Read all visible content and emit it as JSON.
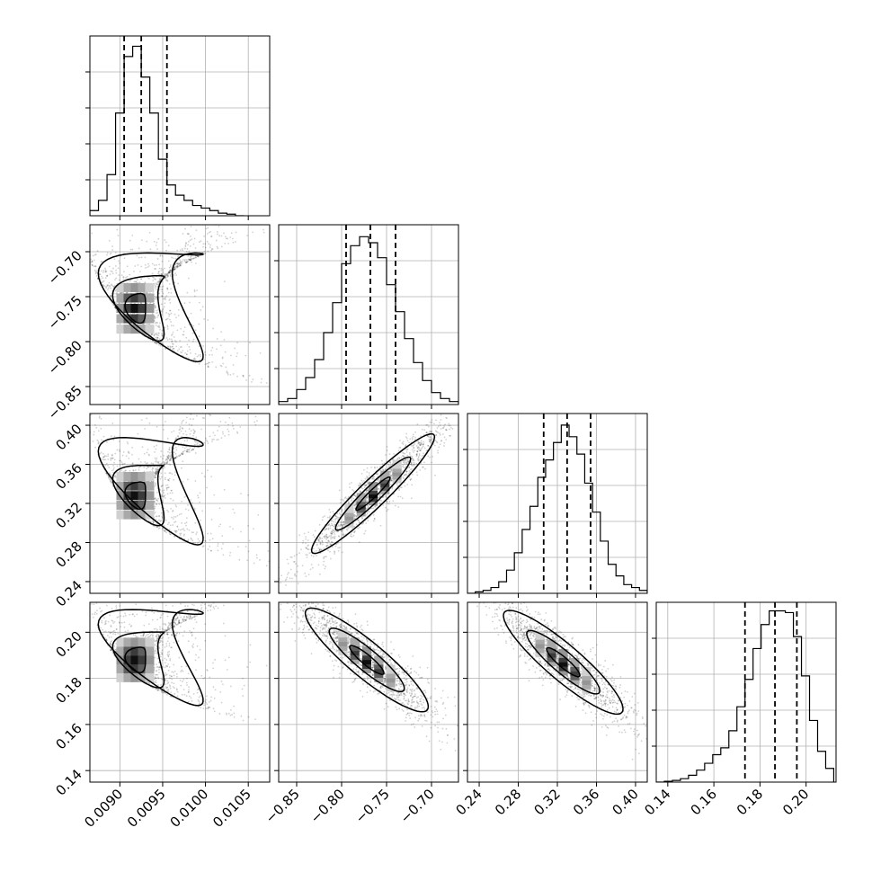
{
  "chart_data": {
    "type": "corner",
    "parameters": [
      {
        "id": "p0",
        "range": [
          0.00865,
          0.01075
        ],
        "ticks": [
          0.009,
          0.0095,
          0.01,
          0.0105
        ],
        "tick_labels": [
          "0.0090",
          "0.0095",
          "0.0100",
          "0.0105"
        ]
      },
      {
        "id": "p1",
        "range": [
          -0.87,
          -0.67
        ],
        "ticks": [
          -0.85,
          -0.8,
          -0.75,
          -0.7
        ],
        "tick_labels": [
          "−0.85",
          "−0.80",
          "−0.75",
          "−0.70"
        ]
      },
      {
        "id": "p2",
        "range": [
          0.228,
          0.412
        ],
        "ticks": [
          0.24,
          0.28,
          0.32,
          0.36,
          0.4
        ],
        "tick_labels": [
          "0.24",
          "0.28",
          "0.32",
          "0.36",
          "0.40"
        ]
      },
      {
        "id": "p3",
        "range": [
          0.135,
          0.213
        ],
        "ticks": [
          0.14,
          0.16,
          0.18,
          0.2
        ],
        "tick_labels": [
          "0.14",
          "0.16",
          "0.18",
          "0.20"
        ]
      }
    ],
    "marginals": [
      {
        "param": 0,
        "bin_edges": [
          0.00865,
          0.00875,
          0.00885,
          0.00895,
          0.00905,
          0.00915,
          0.00925,
          0.00935,
          0.00945,
          0.00955,
          0.00965,
          0.00975,
          0.00985,
          0.00995,
          0.01005,
          0.01015,
          0.01025,
          0.01035,
          0.01045
        ],
        "counts": [
          1,
          3,
          8,
          20,
          31,
          33,
          27,
          20,
          11,
          6,
          4,
          3,
          2,
          1.5,
          1,
          0.5,
          0.3,
          0
        ],
        "ylim": [
          0,
          35
        ],
        "quantiles": [
          0.00905,
          0.00925,
          0.00955
        ]
      },
      {
        "param": 1,
        "bin_edges": [
          -0.87,
          -0.86,
          -0.85,
          -0.84,
          -0.83,
          -0.82,
          -0.81,
          -0.8,
          -0.79,
          -0.78,
          -0.77,
          -0.76,
          -0.75,
          -0.74,
          -0.73,
          -0.72,
          -0.71,
          -0.7,
          -0.69,
          -0.68,
          -0.67
        ],
        "counts": [
          1,
          2,
          5,
          9,
          15,
          24,
          34,
          47,
          53,
          56,
          54,
          49,
          40,
          31,
          22,
          14,
          8,
          4,
          2,
          1
        ],
        "ylim": [
          0,
          60
        ],
        "quantiles": [
          -0.795,
          -0.768,
          -0.74
        ]
      },
      {
        "param": 2,
        "bin_edges": [
          0.228,
          0.236,
          0.244,
          0.252,
          0.26,
          0.268,
          0.276,
          0.284,
          0.292,
          0.3,
          0.308,
          0.316,
          0.324,
          0.332,
          0.34,
          0.348,
          0.356,
          0.364,
          0.372,
          0.38,
          0.388,
          0.396,
          0.404,
          0.412
        ],
        "counts": [
          0,
          0.5,
          1,
          2,
          4,
          8,
          14,
          22,
          30,
          40,
          46,
          52,
          58,
          54,
          48,
          38,
          28,
          18,
          10,
          6,
          3,
          2,
          1
        ],
        "ylim": [
          0,
          62
        ],
        "quantiles": [
          0.306,
          0.33,
          0.354
        ]
      },
      {
        "param": 3,
        "bin_edges": [
          0.135,
          0.1385,
          0.142,
          0.1455,
          0.149,
          0.1525,
          0.156,
          0.1595,
          0.163,
          0.1665,
          0.17,
          0.1735,
          0.177,
          0.1805,
          0.184,
          0.1875,
          0.191,
          0.1945,
          0.198,
          0.2015,
          0.205,
          0.2085,
          0.212
        ],
        "counts": [
          0,
          0.5,
          1,
          2,
          4,
          7,
          11,
          16,
          20,
          30,
          44,
          60,
          78,
          92,
          100,
          100,
          99,
          85,
          62,
          36,
          18,
          8
        ],
        "ylim": [
          0,
          105
        ],
        "quantiles": [
          0.1735,
          0.1865,
          0.196
        ]
      }
    ],
    "pairs": [
      {
        "x": 0,
        "y": 1,
        "mode": [
          0.00918,
          -0.763
        ],
        "size": [
          0.00024,
          0.033
        ],
        "corr": 0.0,
        "skew": [
          0.00045,
          -0.03
        ],
        "contour_levels": [
          0.5,
          1.1,
          1.8
        ]
      },
      {
        "x": 0,
        "y": 2,
        "mode": [
          0.00918,
          0.328
        ],
        "size": [
          0.00024,
          0.028
        ],
        "corr": 0.0,
        "skew": [
          0.00045,
          0.035
        ],
        "contour_levels": [
          0.5,
          1.1,
          1.8
        ]
      },
      {
        "x": 1,
        "y": 2,
        "mode": [
          -0.765,
          0.33
        ],
        "size": [
          0.038,
          0.034
        ],
        "corr": 0.95,
        "skew": [
          0,
          0
        ],
        "contour_levels": [
          0.5,
          1.1,
          1.8
        ]
      },
      {
        "x": 0,
        "y": 3,
        "mode": [
          0.00918,
          0.188
        ],
        "size": [
          0.00024,
          0.011
        ],
        "corr": 0.0,
        "skew": [
          0.00045,
          -0.012
        ],
        "contour_levels": [
          0.5,
          1.1,
          1.8
        ]
      },
      {
        "x": 1,
        "y": 3,
        "mode": [
          -0.772,
          0.188
        ],
        "size": [
          0.038,
          0.0125
        ],
        "corr": -0.9,
        "skew": [
          0,
          0
        ],
        "contour_levels": [
          0.5,
          1.1,
          1.8
        ]
      },
      {
        "x": 2,
        "y": 3,
        "mode": [
          0.326,
          0.187
        ],
        "size": [
          0.034,
          0.0125
        ],
        "corr": -0.9,
        "skew": [
          0,
          0
        ],
        "contour_levels": [
          0.5,
          1.1,
          1.8
        ]
      }
    ],
    "grid": true,
    "xlabels": [
      "",
      "",
      "",
      ""
    ],
    "ylabels": [
      "",
      "",
      "",
      ""
    ],
    "title": ""
  }
}
